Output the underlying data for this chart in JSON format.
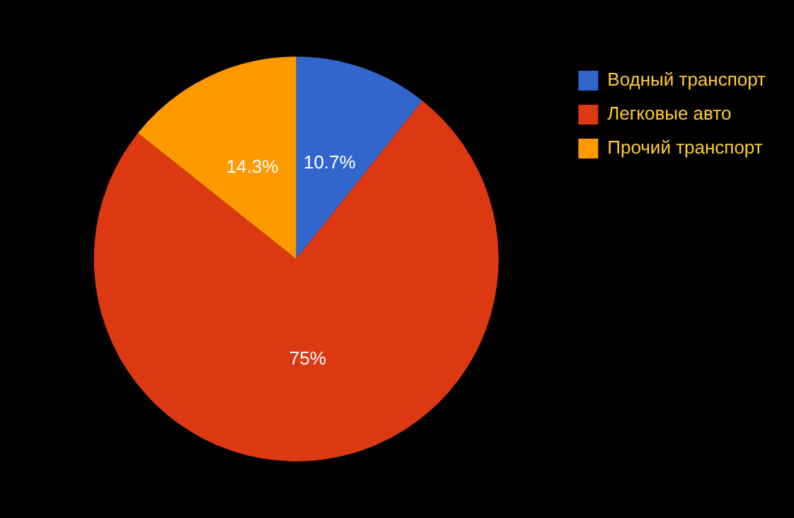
{
  "chart_data": {
    "type": "pie",
    "categories": [
      "Водный транспорт",
      "Легковые авто",
      "Прочий транспорт"
    ],
    "values": [
      10.7,
      75,
      14.3
    ],
    "colors": [
      "#3366cc",
      "#dc3912",
      "#ff9900"
    ],
    "value_labels": [
      "10.7%",
      "75%",
      "14.3%"
    ],
    "legend": "top right"
  }
}
